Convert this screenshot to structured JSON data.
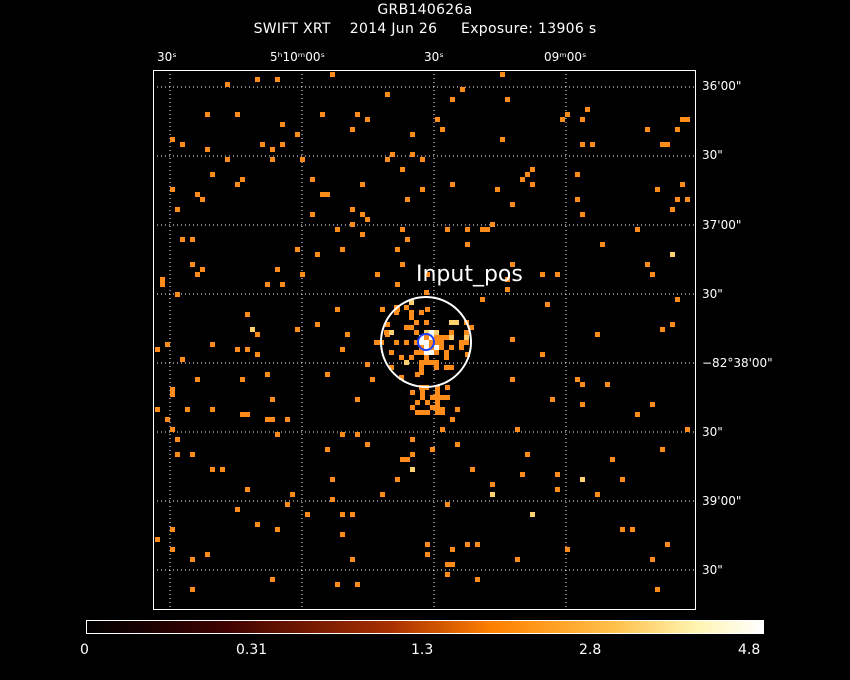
{
  "header": {
    "title": "GRB140626a",
    "subtitle": "SWIFT XRT    2014 Jun 26     Exposure: 13906 s"
  },
  "top_axis_labels": [
    "30ˢ",
    "5ʰ10ᵐ00ˢ",
    "30ˢ",
    "09ᵐ00ˢ"
  ],
  "right_axis_labels": [
    "36'00\"",
    "30\"",
    "37'00\"",
    "30\"",
    "−82°38'00\"",
    "30\"",
    "39'00\"",
    "30\""
  ],
  "annotation": "Input_pos",
  "colorbar": {
    "tick_labels": [
      "0",
      "0.31",
      "1.3",
      "2.8",
      "4.8"
    ],
    "colors": [
      "#000000",
      "#a83000",
      "#ff8000",
      "#ffc04a",
      "#ffffff"
    ]
  },
  "colors": {
    "background": "#000000",
    "pixel": "#ff8c1a",
    "pixel_bright": "#ffd070",
    "pixel_peak": "#ffffff",
    "circle": "#ffffff",
    "marker": "#2040ff"
  }
}
